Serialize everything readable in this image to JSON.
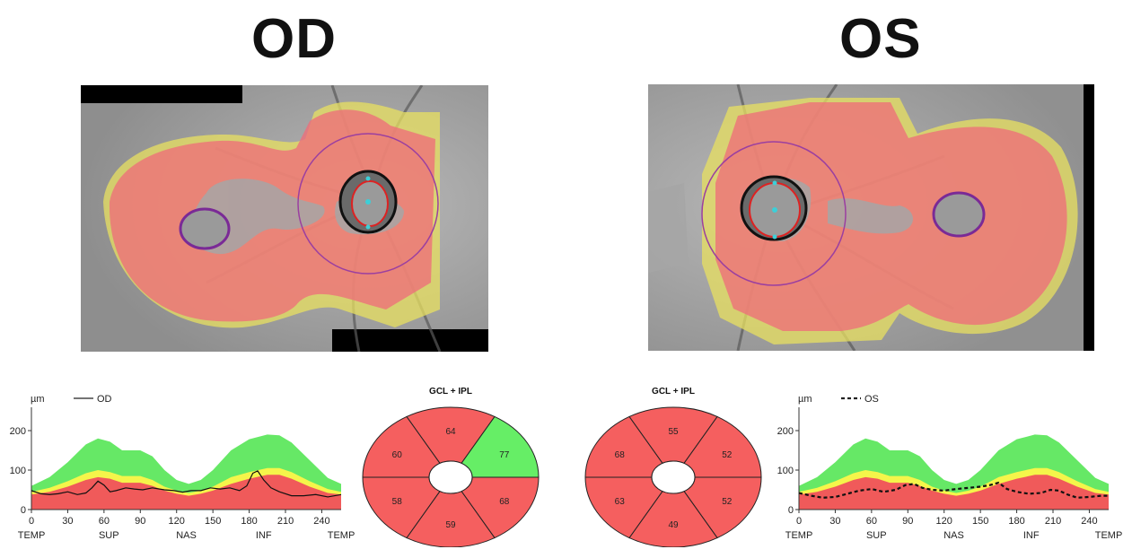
{
  "eyes": [
    {
      "id": "od",
      "title": "OD",
      "tsnit": {
        "unit_label": "µm",
        "legend_label": "OD",
        "legend_style": "solid",
        "y_ticks": [
          "0",
          "100",
          "200"
        ],
        "x_ticks": [
          "0",
          "30",
          "60",
          "90",
          "120",
          "150",
          "180",
          "210",
          "240"
        ],
        "x_regions": [
          "TEMP",
          "SUP",
          "NAS",
          "INF",
          "TEMP"
        ],
        "x_max": 256,
        "y_max": 250,
        "normal_upper": [
          [
            0,
            60
          ],
          [
            15,
            82
          ],
          [
            30,
            120
          ],
          [
            45,
            165
          ],
          [
            55,
            180
          ],
          [
            65,
            172
          ],
          [
            75,
            150
          ],
          [
            90,
            150
          ],
          [
            100,
            135
          ],
          [
            110,
            100
          ],
          [
            120,
            75
          ],
          [
            130,
            65
          ],
          [
            140,
            75
          ],
          [
            150,
            100
          ],
          [
            165,
            150
          ],
          [
            180,
            178
          ],
          [
            195,
            190
          ],
          [
            205,
            188
          ],
          [
            215,
            170
          ],
          [
            230,
            125
          ],
          [
            245,
            80
          ],
          [
            256,
            65
          ]
        ],
        "normal_mid": [
          [
            0,
            45
          ],
          [
            15,
            55
          ],
          [
            30,
            72
          ],
          [
            45,
            92
          ],
          [
            55,
            100
          ],
          [
            65,
            95
          ],
          [
            75,
            85
          ],
          [
            90,
            85
          ],
          [
            100,
            75
          ],
          [
            110,
            58
          ],
          [
            120,
            48
          ],
          [
            130,
            42
          ],
          [
            140,
            48
          ],
          [
            150,
            58
          ],
          [
            165,
            82
          ],
          [
            180,
            95
          ],
          [
            195,
            105
          ],
          [
            205,
            105
          ],
          [
            215,
            95
          ],
          [
            230,
            72
          ],
          [
            245,
            52
          ],
          [
            256,
            45
          ]
        ],
        "normal_lower": [
          [
            0,
            38
          ],
          [
            15,
            45
          ],
          [
            30,
            58
          ],
          [
            45,
            75
          ],
          [
            55,
            82
          ],
          [
            65,
            78
          ],
          [
            75,
            68
          ],
          [
            90,
            68
          ],
          [
            100,
            60
          ],
          [
            110,
            48
          ],
          [
            120,
            40
          ],
          [
            130,
            35
          ],
          [
            140,
            40
          ],
          [
            150,
            48
          ],
          [
            165,
            65
          ],
          [
            180,
            78
          ],
          [
            195,
            88
          ],
          [
            205,
            88
          ],
          [
            215,
            78
          ],
          [
            230,
            58
          ],
          [
            245,
            42
          ],
          [
            256,
            38
          ]
        ],
        "measured": [
          [
            0,
            48
          ],
          [
            8,
            40
          ],
          [
            15,
            38
          ],
          [
            22,
            40
          ],
          [
            30,
            45
          ],
          [
            38,
            38
          ],
          [
            45,
            42
          ],
          [
            50,
            55
          ],
          [
            55,
            72
          ],
          [
            60,
            62
          ],
          [
            65,
            45
          ],
          [
            70,
            48
          ],
          [
            78,
            55
          ],
          [
            85,
            52
          ],
          [
            92,
            50
          ],
          [
            100,
            55
          ],
          [
            110,
            50
          ],
          [
            118,
            48
          ],
          [
            125,
            44
          ],
          [
            132,
            48
          ],
          [
            140,
            48
          ],
          [
            148,
            55
          ],
          [
            156,
            52
          ],
          [
            164,
            55
          ],
          [
            172,
            48
          ],
          [
            178,
            60
          ],
          [
            183,
            92
          ],
          [
            187,
            98
          ],
          [
            192,
            75
          ],
          [
            198,
            55
          ],
          [
            205,
            45
          ],
          [
            215,
            35
          ],
          [
            225,
            35
          ],
          [
            235,
            38
          ],
          [
            245,
            32
          ],
          [
            256,
            38
          ]
        ]
      },
      "sectors": {
        "title": "GCL + IPL",
        "values": {
          "superior": "64",
          "superonasal": "77",
          "inferonasal": "68",
          "inferior": "59",
          "inferotemporal": "58",
          "superotemporal": "60"
        },
        "colors": {
          "superior": "#f55f5f",
          "superonasal": "#66ee66",
          "inferonasal": "#f55f5f",
          "inferior": "#f55f5f",
          "inferotemporal": "#f55f5f",
          "superotemporal": "#f55f5f"
        },
        "nasal_side": "right"
      }
    },
    {
      "id": "os",
      "title": "OS",
      "tsnit": {
        "unit_label": "µm",
        "legend_label": "OS",
        "legend_style": "dashed",
        "y_ticks": [
          "0",
          "100",
          "200"
        ],
        "x_ticks": [
          "0",
          "30",
          "60",
          "90",
          "120",
          "150",
          "180",
          "210",
          "240"
        ],
        "x_regions": [
          "TEMP",
          "SUP",
          "NAS",
          "INF",
          "TEMP"
        ],
        "x_max": 256,
        "y_max": 250,
        "normal_upper": [
          [
            0,
            60
          ],
          [
            15,
            82
          ],
          [
            30,
            120
          ],
          [
            45,
            165
          ],
          [
            55,
            180
          ],
          [
            65,
            172
          ],
          [
            75,
            150
          ],
          [
            90,
            150
          ],
          [
            100,
            135
          ],
          [
            110,
            100
          ],
          [
            120,
            75
          ],
          [
            130,
            65
          ],
          [
            140,
            75
          ],
          [
            150,
            100
          ],
          [
            165,
            150
          ],
          [
            180,
            178
          ],
          [
            195,
            190
          ],
          [
            205,
            188
          ],
          [
            215,
            170
          ],
          [
            230,
            125
          ],
          [
            245,
            80
          ],
          [
            256,
            65
          ]
        ],
        "normal_mid": [
          [
            0,
            45
          ],
          [
            15,
            55
          ],
          [
            30,
            72
          ],
          [
            45,
            92
          ],
          [
            55,
            100
          ],
          [
            65,
            95
          ],
          [
            75,
            85
          ],
          [
            90,
            85
          ],
          [
            100,
            75
          ],
          [
            110,
            58
          ],
          [
            120,
            48
          ],
          [
            130,
            42
          ],
          [
            140,
            48
          ],
          [
            150,
            58
          ],
          [
            165,
            82
          ],
          [
            180,
            95
          ],
          [
            195,
            105
          ],
          [
            205,
            105
          ],
          [
            215,
            95
          ],
          [
            230,
            72
          ],
          [
            245,
            52
          ],
          [
            256,
            45
          ]
        ],
        "normal_lower": [
          [
            0,
            38
          ],
          [
            15,
            45
          ],
          [
            30,
            58
          ],
          [
            45,
            75
          ],
          [
            55,
            82
          ],
          [
            65,
            78
          ],
          [
            75,
            68
          ],
          [
            90,
            68
          ],
          [
            100,
            60
          ],
          [
            110,
            48
          ],
          [
            120,
            40
          ],
          [
            130,
            35
          ],
          [
            140,
            40
          ],
          [
            150,
            48
          ],
          [
            165,
            65
          ],
          [
            180,
            78
          ],
          [
            195,
            88
          ],
          [
            205,
            88
          ],
          [
            215,
            78
          ],
          [
            230,
            58
          ],
          [
            245,
            42
          ],
          [
            256,
            38
          ]
        ],
        "measured": [
          [
            0,
            42
          ],
          [
            10,
            35
          ],
          [
            20,
            30
          ],
          [
            30,
            32
          ],
          [
            40,
            40
          ],
          [
            50,
            48
          ],
          [
            60,
            52
          ],
          [
            70,
            45
          ],
          [
            80,
            50
          ],
          [
            88,
            62
          ],
          [
            95,
            65
          ],
          [
            102,
            55
          ],
          [
            110,
            50
          ],
          [
            120,
            48
          ],
          [
            130,
            52
          ],
          [
            140,
            55
          ],
          [
            150,
            58
          ],
          [
            158,
            62
          ],
          [
            165,
            68
          ],
          [
            172,
            52
          ],
          [
            180,
            45
          ],
          [
            190,
            40
          ],
          [
            200,
            42
          ],
          [
            208,
            50
          ],
          [
            215,
            48
          ],
          [
            222,
            38
          ],
          [
            230,
            30
          ],
          [
            240,
            32
          ],
          [
            250,
            35
          ],
          [
            256,
            35
          ]
        ]
      },
      "sectors": {
        "title": "GCL + IPL",
        "values": {
          "superior": "55",
          "superonasal": "68",
          "inferonasal": "63",
          "inferior": "49",
          "inferotemporal": "52",
          "superotemporal": "52"
        },
        "colors": {
          "superior": "#f55f5f",
          "superonasal": "#f55f5f",
          "inferonasal": "#f55f5f",
          "inferior": "#f55f5f",
          "inferotemporal": "#f55f5f",
          "superotemporal": "#f55f5f"
        },
        "nasal_side": "left"
      }
    }
  ]
}
